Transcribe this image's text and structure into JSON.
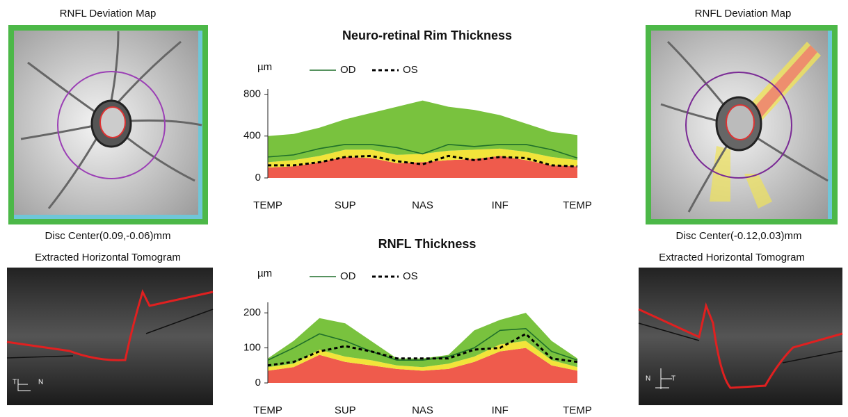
{
  "panels": {
    "left": {
      "title": "RNFL Deviation Map",
      "disc_center": "Disc Center(0.09,-0.06)mm",
      "tomogram_title": "Extracted Horizontal Tomogram",
      "orientation": [
        "T",
        "N"
      ]
    },
    "right": {
      "title": "RNFL Deviation Map",
      "disc_center": "Disc Center(-0.12,0.03)mm",
      "tomogram_title": "Extracted Horizontal Tomogram",
      "orientation": [
        "N",
        "T"
      ]
    }
  },
  "chart_data": [
    {
      "type": "line",
      "title": "Neuro-retinal Rim Thickness",
      "y_label": "µm",
      "x": [
        0,
        1,
        2,
        3,
        4,
        5,
        6,
        7,
        8,
        9,
        10,
        11,
        12
      ],
      "xlim": [
        0,
        12
      ],
      "xticks": [
        {
          "value": 0,
          "label": "TEMP"
        },
        {
          "value": 3,
          "label": "SUP"
        },
        {
          "value": 6,
          "label": "NAS"
        },
        {
          "value": 9,
          "label": "INF"
        },
        {
          "value": 12,
          "label": "TEMP"
        }
      ],
      "ylim": [
        0,
        850
      ],
      "yticks": [
        0,
        400,
        800
      ],
      "bands": [
        {
          "color": "#ef5b4c",
          "values": [
            100,
            110,
            150,
            200,
            190,
            140,
            150,
            170,
            180,
            210,
            170,
            120,
            110
          ]
        },
        {
          "color": "#f2e43a",
          "values": [
            50,
            60,
            60,
            70,
            80,
            80,
            80,
            90,
            90,
            70,
            80,
            80,
            60
          ]
        },
        {
          "color": "#79c23e",
          "values": [
            250,
            250,
            270,
            290,
            350,
            460,
            510,
            420,
            380,
            320,
            270,
            240,
            240
          ]
        }
      ],
      "series": [
        {
          "name": "OD",
          "color": "#1f6f2a",
          "style": "solid",
          "values": [
            200,
            220,
            280,
            320,
            320,
            290,
            230,
            320,
            300,
            320,
            320,
            270,
            190
          ]
        },
        {
          "name": "OS",
          "color": "#000000",
          "style": "dashed",
          "values": [
            120,
            120,
            150,
            200,
            210,
            160,
            130,
            210,
            170,
            200,
            190,
            120,
            110
          ]
        }
      ]
    },
    {
      "type": "line",
      "title": "RNFL Thickness",
      "y_label": "µm",
      "x": [
        0,
        1,
        2,
        3,
        4,
        5,
        6,
        7,
        8,
        9,
        10,
        11,
        12
      ],
      "xlim": [
        0,
        12
      ],
      "xticks": [
        {
          "value": 0,
          "label": "TEMP"
        },
        {
          "value": 3,
          "label": "SUP"
        },
        {
          "value": 6,
          "label": "NAS"
        },
        {
          "value": 9,
          "label": "INF"
        },
        {
          "value": 12,
          "label": "TEMP"
        }
      ],
      "ylim": [
        0,
        230
      ],
      "yticks": [
        0,
        100,
        200
      ],
      "bands": [
        {
          "color": "#ef5b4c",
          "values": [
            35,
            45,
            80,
            60,
            50,
            40,
            35,
            40,
            60,
            90,
            100,
            50,
            35
          ]
        },
        {
          "color": "#f2e43a",
          "values": [
            10,
            10,
            15,
            15,
            15,
            10,
            10,
            15,
            15,
            20,
            20,
            15,
            10
          ]
        },
        {
          "color": "#79c23e",
          "values": [
            25,
            65,
            90,
            95,
            55,
            20,
            25,
            25,
            75,
            70,
            80,
            55,
            25
          ]
        }
      ],
      "series": [
        {
          "name": "OD",
          "color": "#1f6f2a",
          "style": "solid",
          "values": [
            65,
            100,
            140,
            120,
            90,
            65,
            65,
            75,
            100,
            150,
            155,
            90,
            65
          ]
        },
        {
          "name": "OS",
          "color": "#000000",
          "style": "dashed",
          "values": [
            50,
            60,
            90,
            105,
            90,
            70,
            70,
            70,
            95,
            100,
            140,
            70,
            60
          ]
        }
      ]
    }
  ]
}
